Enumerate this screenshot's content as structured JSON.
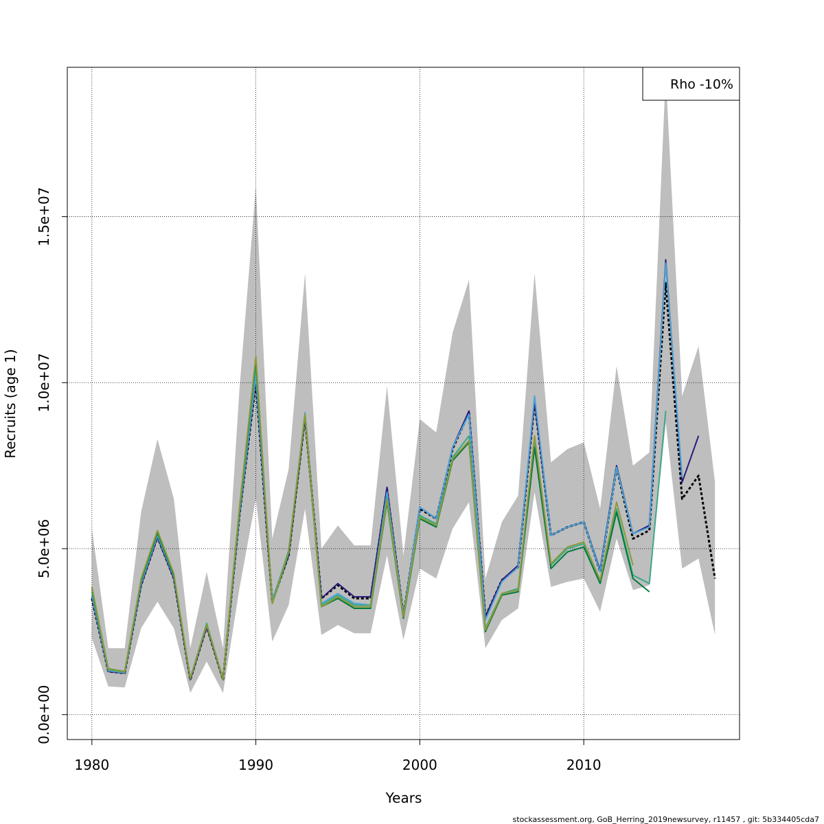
{
  "chart_data": {
    "type": "line",
    "xlabel": "Years",
    "ylabel": "Recruits (age 1)",
    "xlim": [
      1978.5,
      2019.5
    ],
    "ylim": [
      -750000,
      19500000
    ],
    "xticks": [
      1980,
      1990,
      2000,
      2010
    ],
    "xtick_labels": [
      "1980",
      "1990",
      "2000",
      "2010"
    ],
    "yticks": [
      0,
      5000000,
      10000000,
      15000000
    ],
    "ytick_labels": [
      "0.0e+00",
      "5.0e+06",
      "1.0e+07",
      "1.5e+07"
    ],
    "grid": true,
    "legend": {
      "position": "top-right",
      "text": "Rho -10%"
    },
    "footer": "stockassessment.org, GoB_Herring_2019newsurvey, r11457 , git: 5b334405cda7",
    "band": {
      "x": [
        1980,
        1981,
        1982,
        1983,
        1984,
        1985,
        1986,
        1987,
        1988,
        1989,
        1990,
        1991,
        1992,
        1993,
        1994,
        1995,
        1996,
        1997,
        1998,
        1999,
        2000,
        2001,
        2002,
        2003,
        2004,
        2005,
        2006,
        2007,
        2008,
        2009,
        2010,
        2011,
        2012,
        2013,
        2014,
        2015,
        2016,
        2017,
        2018
      ],
      "lower": [
        2300000,
        850000,
        820000,
        2600000,
        3400000,
        2600000,
        650000,
        1600000,
        650000,
        3800000,
        6500000,
        2200000,
        3300000,
        6200000,
        2400000,
        2700000,
        2450000,
        2450000,
        4800000,
        2250000,
        4400000,
        4100000,
        5600000,
        6400000,
        2000000,
        2850000,
        3200000,
        6700000,
        3850000,
        4000000,
        4100000,
        3100000,
        5300000,
        3750000,
        3900000,
        8800000,
        4400000,
        4700000,
        2400000
      ],
      "upper": [
        5600000,
        2000000,
        2000000,
        6100000,
        8300000,
        6500000,
        2000000,
        4300000,
        2000000,
        9800000,
        15900000,
        5300000,
        7400000,
        13300000,
        5000000,
        5700000,
        5100000,
        5100000,
        9900000,
        4800000,
        8900000,
        8500000,
        11500000,
        13100000,
        4100000,
        5800000,
        6600000,
        13300000,
        7600000,
        8000000,
        8200000,
        6200000,
        10500000,
        7500000,
        7900000,
        19300000,
        9600000,
        11100000,
        7000000
      ]
    },
    "series": [
      {
        "color": "#000000",
        "dashed": true,
        "x": [
          1980,
          1981,
          1982,
          1983,
          1984,
          1985,
          1986,
          1987,
          1988,
          1989,
          1990,
          1991,
          1992,
          1993,
          1994,
          1995,
          1996,
          1997,
          1998,
          1999,
          2000,
          2001,
          2002,
          2003,
          2004,
          2005,
          2006,
          2007,
          2008,
          2009,
          2010,
          2011,
          2012,
          2013,
          2014,
          2015,
          2016,
          2017,
          2018
        ],
        "values": [
          3500000,
          1300000,
          1250000,
          3900000,
          5350000,
          4100000,
          1050000,
          2650000,
          1050000,
          6000000,
          10000000,
          3400000,
          4800000,
          8950000,
          3500000,
          3900000,
          3500000,
          3500000,
          6800000,
          3000000,
          6200000,
          5900000,
          8000000,
          9100000,
          2950000,
          4050000,
          4450000,
          9400000,
          5400000,
          5650000,
          5800000,
          4300000,
          7450000,
          5300000,
          5550000,
          13000000,
          6500000,
          7200000,
          4100000
        ]
      },
      {
        "color": "#2b1a7a",
        "dashed": false,
        "x": [
          1980,
          1981,
          1982,
          1983,
          1984,
          1985,
          1986,
          1987,
          1988,
          1989,
          1990,
          1991,
          1992,
          1993,
          1994,
          1995,
          1996,
          1997,
          1998,
          1999,
          2000,
          2001,
          2002,
          2003,
          2004,
          2005,
          2006,
          2007,
          2008,
          2009,
          2010,
          2011,
          2012,
          2013,
          2014,
          2015,
          2016,
          2017
        ],
        "values": [
          3550000,
          1300000,
          1250000,
          3900000,
          5350000,
          4100000,
          1050000,
          2650000,
          1050000,
          6000000,
          10100000,
          3400000,
          4800000,
          8950000,
          3500000,
          3950000,
          3550000,
          3550000,
          6850000,
          3000000,
          6250000,
          5900000,
          8050000,
          9150000,
          2950000,
          4050000,
          4500000,
          9450000,
          5400000,
          5650000,
          5800000,
          4350000,
          7500000,
          5450000,
          5700000,
          13700000,
          7000000,
          8400000
        ]
      },
      {
        "color": "#4aa3d9",
        "dashed": false,
        "x": [
          1980,
          1981,
          1982,
          1983,
          1984,
          1985,
          1986,
          1987,
          1988,
          1989,
          1990,
          1991,
          1992,
          1993,
          1994,
          1995,
          1996,
          1997,
          1998,
          1999,
          2000,
          2001,
          2002,
          2003,
          2004,
          2005,
          2006,
          2007,
          2008,
          2009,
          2010,
          2011,
          2012,
          2013,
          2014,
          2015,
          2016
        ],
        "values": [
          3600000,
          1320000,
          1260000,
          3950000,
          5400000,
          4150000,
          1080000,
          2700000,
          1070000,
          6050000,
          10200000,
          3450000,
          4900000,
          9100000,
          3350000,
          3650000,
          3350000,
          3300000,
          6700000,
          3000000,
          6250000,
          5900000,
          8050000,
          9050000,
          2850000,
          4000000,
          4450000,
          9600000,
          5400000,
          5650000,
          5800000,
          4300000,
          7450000,
          5450000,
          5650000,
          13600000,
          7150000
        ]
      },
      {
        "color": "#3aa88a",
        "dashed": false,
        "x": [
          1980,
          1981,
          1982,
          1983,
          1984,
          1985,
          1986,
          1987,
          1988,
          1989,
          1990,
          1991,
          1992,
          1993,
          1994,
          1995,
          1996,
          1997,
          1998,
          1999,
          2000,
          2001,
          2002,
          2003,
          2004,
          2005,
          2006,
          2007,
          2008,
          2009,
          2010,
          2011,
          2012,
          2013,
          2014,
          2015
        ],
        "values": [
          3700000,
          1350000,
          1280000,
          4000000,
          5450000,
          4200000,
          1080000,
          2750000,
          1060000,
          6100000,
          10500000,
          3400000,
          4950000,
          9050000,
          3300000,
          3600000,
          3300000,
          3300000,
          6550000,
          2950000,
          6000000,
          5750000,
          7750000,
          8400000,
          2600000,
          3650000,
          3800000,
          8250000,
          4500000,
          5000000,
          5150000,
          4050000,
          6200000,
          4200000,
          3950000,
          9150000
        ]
      },
      {
        "color": "#007a3d",
        "dashed": false,
        "x": [
          1980,
          1981,
          1982,
          1983,
          1984,
          1985,
          1986,
          1987,
          1988,
          1989,
          1990,
          1991,
          1992,
          1993,
          1994,
          1995,
          1996,
          1997,
          1998,
          1999,
          2000,
          2001,
          2002,
          2003,
          2004,
          2005,
          2006,
          2007,
          2008,
          2009,
          2010,
          2011,
          2012,
          2013,
          2014
        ],
        "values": [
          3800000,
          1380000,
          1300000,
          4050000,
          5500000,
          4200000,
          1080000,
          2700000,
          1050000,
          6200000,
          10700000,
          3350000,
          4850000,
          9000000,
          3250000,
          3500000,
          3200000,
          3200000,
          6400000,
          2900000,
          5900000,
          5650000,
          7650000,
          8200000,
          2500000,
          3600000,
          3700000,
          8050000,
          4400000,
          4900000,
          5050000,
          3950000,
          6100000,
          4100000,
          3700000
        ]
      },
      {
        "color": "#8c9a3a",
        "dashed": false,
        "x": [
          1980,
          1981,
          1982,
          1983,
          1984,
          1985,
          1986,
          1987,
          1988,
          1989,
          1990,
          1991,
          1992,
          1993,
          1994,
          1995,
          1996,
          1997,
          1998,
          1999,
          2000,
          2001,
          2002,
          2003,
          2004,
          2005,
          2006,
          2007,
          2008,
          2009,
          2010,
          2011,
          2012,
          2013
        ],
        "values": [
          3850000,
          1370000,
          1300000,
          4100000,
          5550000,
          4250000,
          1090000,
          2700000,
          1060000,
          6250000,
          10800000,
          3350000,
          4900000,
          9050000,
          3250000,
          3550000,
          3250000,
          3250000,
          6450000,
          2950000,
          5950000,
          5700000,
          7700000,
          8250000,
          2550000,
          3650000,
          3750000,
          8400000,
          4550000,
          5050000,
          5200000,
          4050000,
          6400000,
          4500000
        ]
      }
    ]
  }
}
